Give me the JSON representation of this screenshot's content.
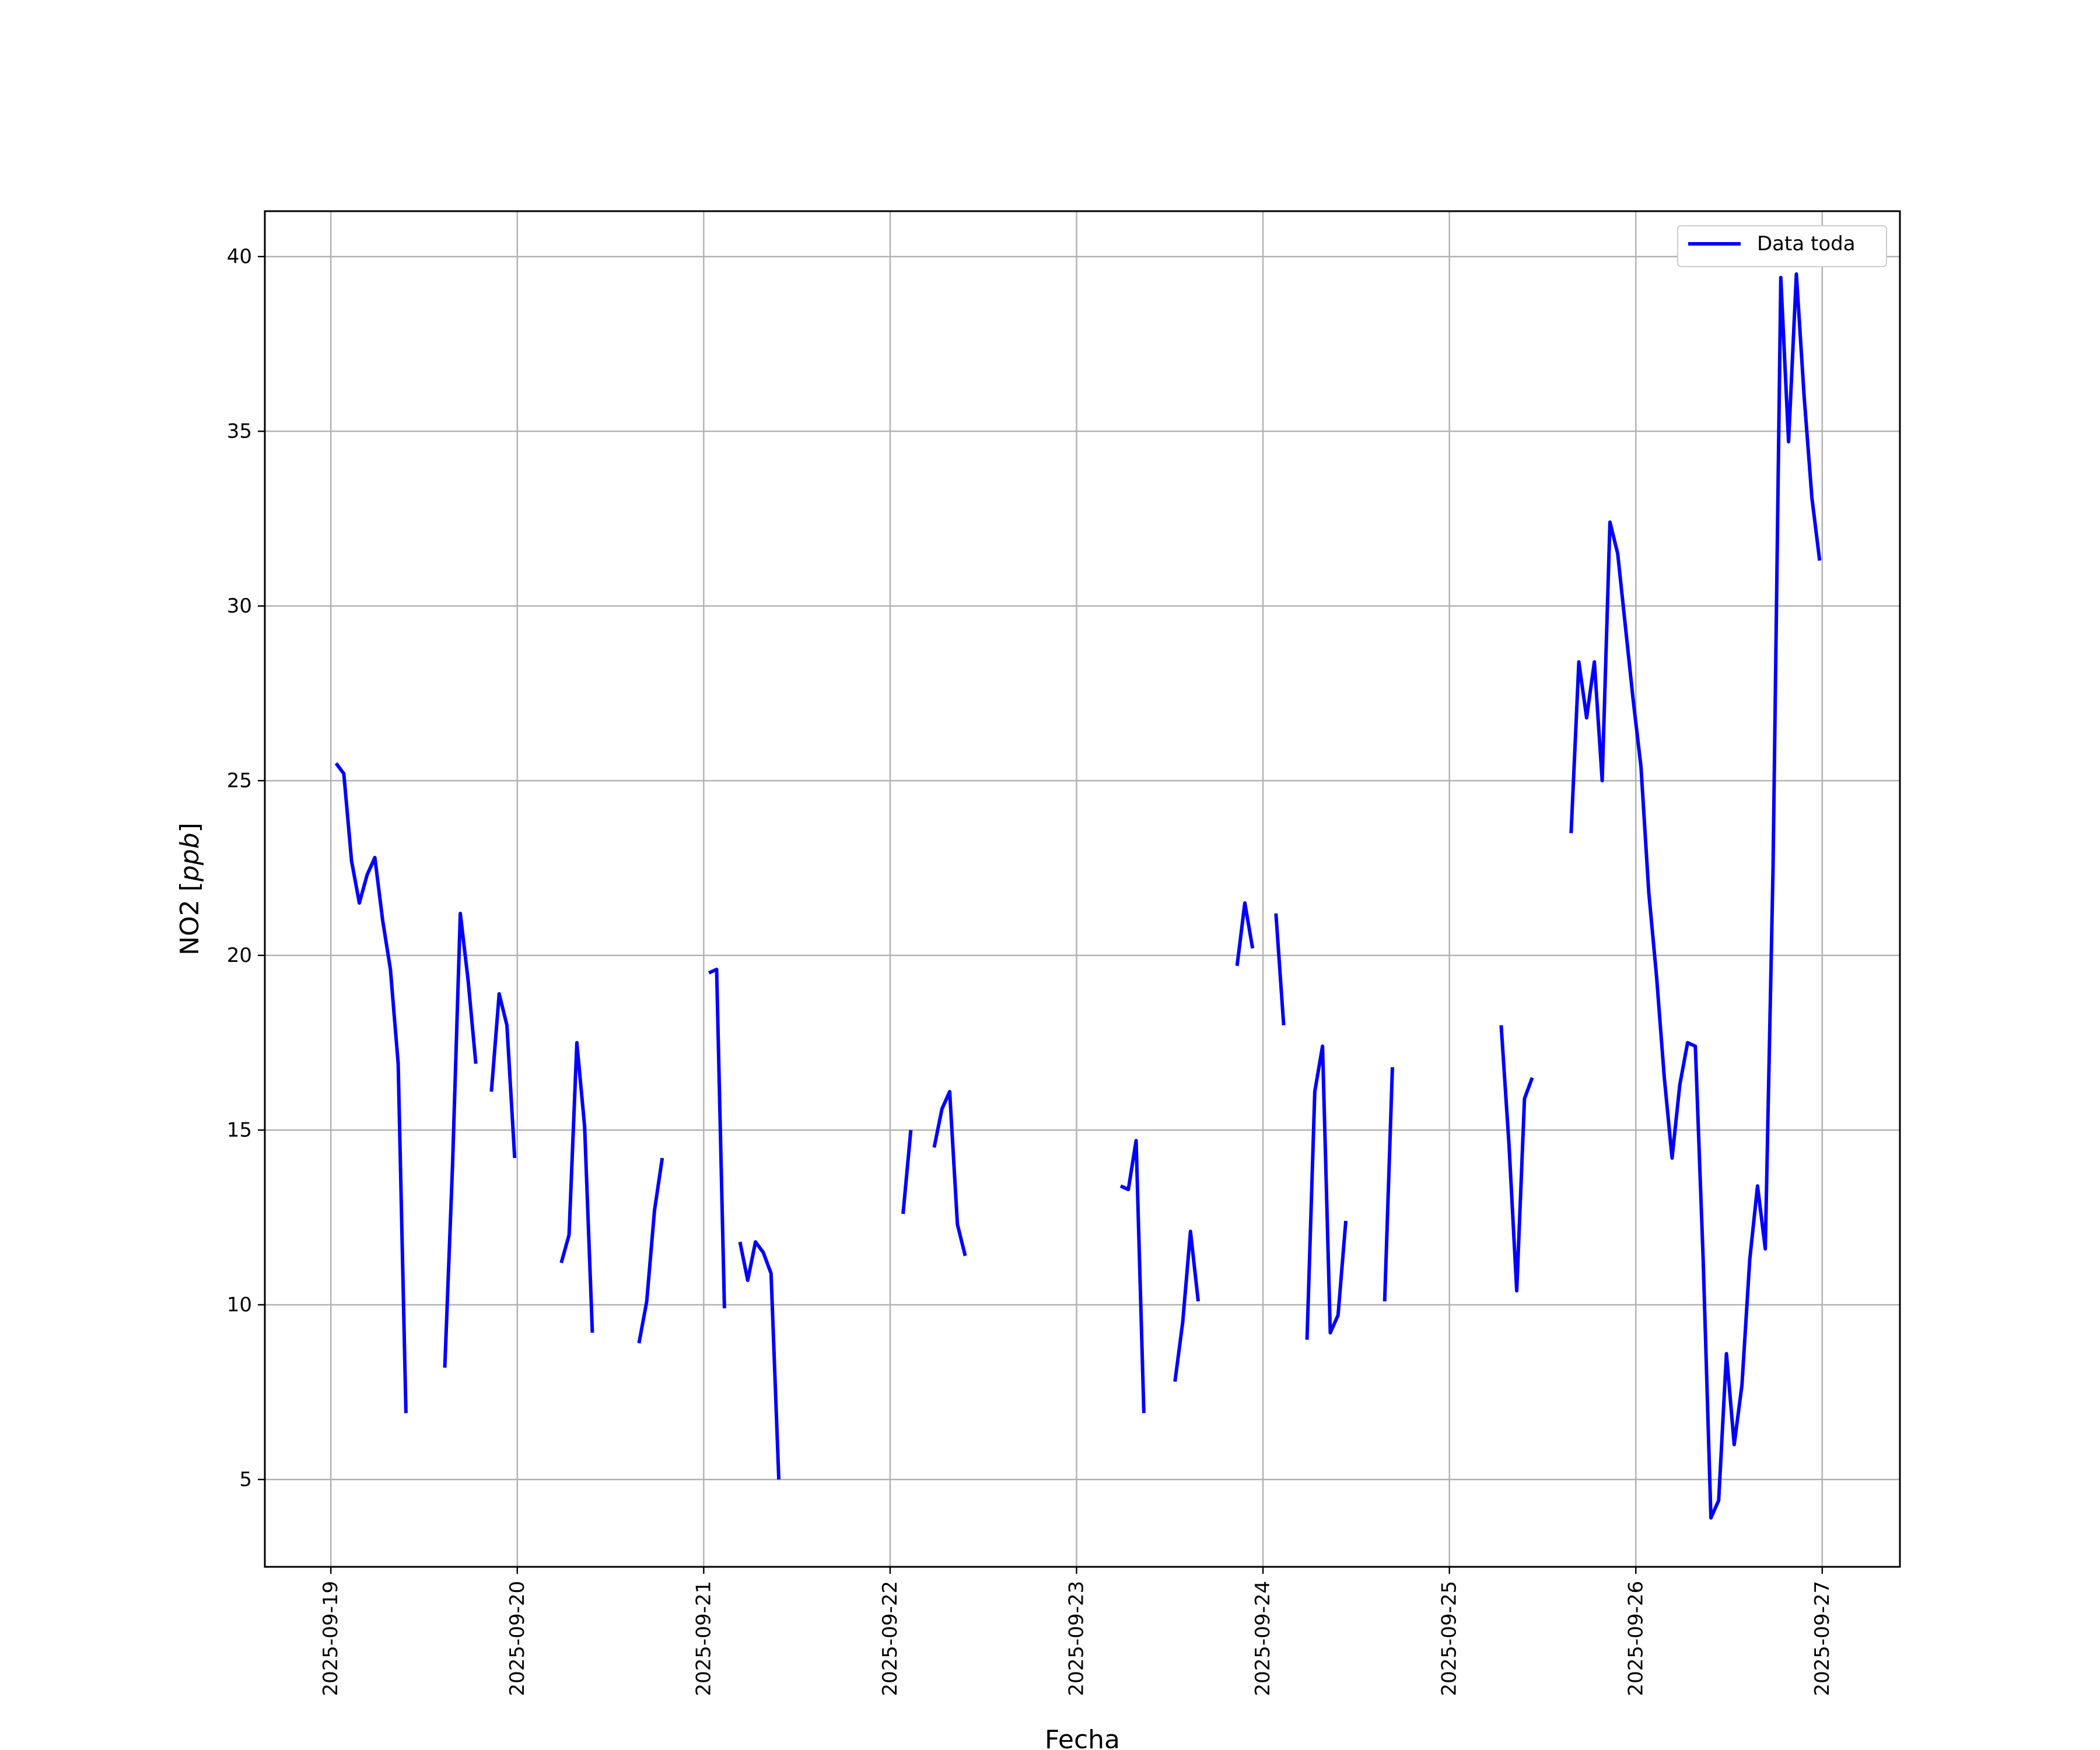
{
  "chart_data": {
    "type": "line",
    "title": "",
    "xlabel": "Fecha",
    "ylabel": "NO2 [ppb]",
    "ylabel_main": "NO2 [",
    "ylabel_unit": "ppb",
    "ylabel_close": "]",
    "x_type": "date",
    "xlim": [
      "2025-09-18T15:30",
      "2025-09-27T10:00"
    ],
    "ylim": [
      2.5,
      41.3
    ],
    "grid": true,
    "legend_position": "top-right",
    "xticks": [
      "2025-09-19",
      "2025-09-20",
      "2025-09-21",
      "2025-09-22",
      "2025-09-23",
      "2025-09-24",
      "2025-09-25",
      "2025-09-26",
      "2025-09-27"
    ],
    "yticks": [
      5,
      10,
      15,
      20,
      25,
      30,
      35,
      40
    ],
    "series": [
      {
        "name": "Data toda",
        "color": "#0000ff",
        "segments": [
          [
            [
              "2025-09-19T00:40",
              25.5
            ],
            [
              "2025-09-19T01:40",
              25.2
            ],
            [
              "2025-09-19T02:40",
              22.7
            ],
            [
              "2025-09-19T03:40",
              21.5
            ],
            [
              "2025-09-19T04:40",
              22.3
            ],
            [
              "2025-09-19T05:40",
              22.8
            ],
            [
              "2025-09-19T06:40",
              21.0
            ],
            [
              "2025-09-19T07:40",
              19.6
            ],
            [
              "2025-09-19T08:40",
              16.9
            ],
            [
              "2025-09-19T09:40",
              6.9
            ]
          ],
          [
            [
              "2025-09-19T14:40",
              8.2
            ],
            [
              "2025-09-19T15:40",
              14.0
            ],
            [
              "2025-09-19T16:40",
              21.2
            ],
            [
              "2025-09-19T17:40",
              19.3
            ],
            [
              "2025-09-19T18:40",
              16.9
            ]
          ],
          [
            [
              "2025-09-19T20:40",
              16.1
            ],
            [
              "2025-09-19T21:40",
              18.9
            ],
            [
              "2025-09-19T22:40",
              18.0
            ],
            [
              "2025-09-19T23:40",
              14.2
            ]
          ],
          [
            [
              "2025-09-20T05:40",
              11.2
            ],
            [
              "2025-09-20T06:40",
              12.0
            ],
            [
              "2025-09-20T07:40",
              17.5
            ],
            [
              "2025-09-20T08:40",
              15.1
            ],
            [
              "2025-09-20T09:40",
              9.2
            ]
          ],
          [
            [
              "2025-09-20T15:40",
              8.9
            ],
            [
              "2025-09-20T16:40",
              10.1
            ],
            [
              "2025-09-20T17:40",
              12.7
            ],
            [
              "2025-09-20T18:40",
              14.2
            ]
          ],
          [
            [
              "2025-09-21T00:40",
              19.5
            ],
            [
              "2025-09-21T01:40",
              19.6
            ],
            [
              "2025-09-21T02:40",
              9.9
            ]
          ],
          [
            [
              "2025-09-21T04:40",
              11.8
            ],
            [
              "2025-09-21T05:40",
              10.7
            ],
            [
              "2025-09-21T06:40",
              11.8
            ],
            [
              "2025-09-21T07:40",
              11.5
            ],
            [
              "2025-09-21T08:40",
              10.9
            ],
            [
              "2025-09-21T09:40",
              5.0
            ]
          ],
          [
            [
              "2025-09-22T01:40",
              12.6
            ],
            [
              "2025-09-22T02:40",
              15.0
            ]
          ],
          [
            [
              "2025-09-22T05:40",
              14.5
            ],
            [
              "2025-09-22T06:40",
              15.6
            ],
            [
              "2025-09-22T07:40",
              16.1
            ],
            [
              "2025-09-22T08:40",
              12.3
            ],
            [
              "2025-09-22T09:40",
              11.4
            ]
          ],
          [
            [
              "2025-09-23T05:40",
              13.4
            ],
            [
              "2025-09-23T06:40",
              13.3
            ],
            [
              "2025-09-23T07:40",
              14.7
            ],
            [
              "2025-09-23T08:40",
              6.9
            ]
          ],
          [
            [
              "2025-09-23T12:40",
              7.8
            ],
            [
              "2025-09-23T13:40",
              9.5
            ],
            [
              "2025-09-23T14:40",
              12.1
            ],
            [
              "2025-09-23T15:40",
              10.1
            ]
          ],
          [
            [
              "2025-09-23T20:40",
              19.7
            ],
            [
              "2025-09-23T21:40",
              21.5
            ],
            [
              "2025-09-23T22:40",
              20.2
            ]
          ],
          [
            [
              "2025-09-24T01:40",
              21.2
            ],
            [
              "2025-09-24T02:40",
              18.0
            ]
          ],
          [
            [
              "2025-09-24T05:40",
              9.0
            ],
            [
              "2025-09-24T06:40",
              16.1
            ],
            [
              "2025-09-24T07:40",
              17.4
            ],
            [
              "2025-09-24T08:40",
              9.2
            ],
            [
              "2025-09-24T09:40",
              9.7
            ],
            [
              "2025-09-24T10:40",
              12.4
            ]
          ],
          [
            [
              "2025-09-24T15:40",
              10.1
            ],
            [
              "2025-09-24T16:40",
              16.8
            ]
          ],
          [
            [
              "2025-09-25T06:40",
              18.0
            ],
            [
              "2025-09-25T07:40",
              14.6
            ],
            [
              "2025-09-25T08:40",
              10.4
            ],
            [
              "2025-09-25T09:40",
              15.9
            ],
            [
              "2025-09-25T10:40",
              16.5
            ]
          ],
          [
            [
              "2025-09-25T15:40",
              23.5
            ],
            [
              "2025-09-25T16:40",
              28.4
            ],
            [
              "2025-09-25T17:40",
              26.8
            ],
            [
              "2025-09-25T18:40",
              28.4
            ],
            [
              "2025-09-25T19:40",
              25.0
            ],
            [
              "2025-09-25T20:40",
              32.4
            ],
            [
              "2025-09-25T21:40",
              31.5
            ],
            [
              "2025-09-25T22:40",
              29.4
            ],
            [
              "2025-09-25T23:40",
              27.3
            ],
            [
              "2025-09-26T00:40",
              25.4
            ],
            [
              "2025-09-26T01:40",
              21.8
            ],
            [
              "2025-09-26T02:40",
              19.4
            ],
            [
              "2025-09-26T03:40",
              16.5
            ],
            [
              "2025-09-26T04:40",
              14.2
            ],
            [
              "2025-09-26T05:40",
              16.3
            ],
            [
              "2025-09-26T06:40",
              17.5
            ],
            [
              "2025-09-26T07:40",
              17.4
            ],
            [
              "2025-09-26T08:40",
              11.3
            ],
            [
              "2025-09-26T09:40",
              3.9
            ],
            [
              "2025-09-26T10:40",
              4.4
            ],
            [
              "2025-09-26T11:40",
              8.6
            ],
            [
              "2025-09-26T12:40",
              6.0
            ],
            [
              "2025-09-26T13:40",
              7.7
            ],
            [
              "2025-09-26T14:40",
              11.3
            ],
            [
              "2025-09-26T15:40",
              13.4
            ],
            [
              "2025-09-26T16:40",
              11.6
            ],
            [
              "2025-09-26T17:40",
              22.5
            ],
            [
              "2025-09-26T18:40",
              39.4
            ],
            [
              "2025-09-26T19:40",
              34.7
            ],
            [
              "2025-09-26T20:40",
              39.5
            ],
            [
              "2025-09-26T21:40",
              36.0
            ],
            [
              "2025-09-26T22:40",
              33.1
            ],
            [
              "2025-09-26T23:40",
              31.3
            ]
          ]
        ]
      }
    ]
  }
}
